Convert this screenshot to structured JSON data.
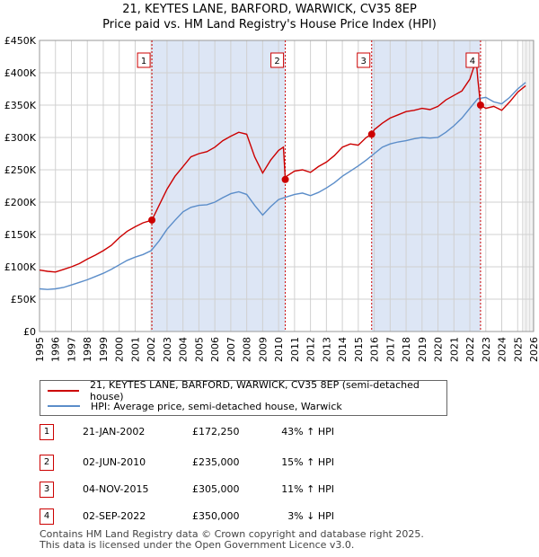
{
  "title_line1": "21, KEYTES LANE, BARFORD, WARWICK, CV35 8EP",
  "title_line2": "Price paid vs. HM Land Registry's House Price Index (HPI)",
  "colors": {
    "property": "#cc0000",
    "hpi": "#5b8dc9",
    "shade": "#dde6f5",
    "grid": "#d0d0d0"
  },
  "chart_data": {
    "type": "line",
    "ylabel_ticks": [
      "£0",
      "£50K",
      "£100K",
      "£150K",
      "£200K",
      "£250K",
      "£300K",
      "£350K",
      "£400K",
      "£450K"
    ],
    "ylim": [
      0,
      450000
    ],
    "xlim": [
      1995,
      2026
    ],
    "x_ticks": [
      "1995",
      "1996",
      "1997",
      "1998",
      "1999",
      "2000",
      "2001",
      "2002",
      "2003",
      "2004",
      "2005",
      "2006",
      "2007",
      "2008",
      "2009",
      "2010",
      "2011",
      "2012",
      "2013",
      "2014",
      "2015",
      "2016",
      "2017",
      "2018",
      "2019",
      "2020",
      "2021",
      "2022",
      "2023",
      "2024",
      "2025",
      "2026"
    ],
    "series": [
      {
        "name": "21, KEYTES LANE, BARFORD, WARWICK, CV35 8EP (semi-detached house)",
        "color": "#cc0000",
        "x": [
          1995.0,
          1995.5,
          1996.0,
          1996.5,
          1997.0,
          1997.5,
          1998.0,
          1998.5,
          1999.0,
          1999.5,
          2000.0,
          2000.5,
          2001.0,
          2001.5,
          2002.05,
          2002.5,
          2003.0,
          2003.5,
          2004.0,
          2004.5,
          2005.0,
          2005.5,
          2006.0,
          2006.5,
          2007.0,
          2007.5,
          2008.0,
          2008.5,
          2009.0,
          2009.5,
          2010.0,
          2010.3,
          2010.42,
          2010.5,
          2011.0,
          2011.5,
          2012.0,
          2012.5,
          2013.0,
          2013.5,
          2014.0,
          2014.5,
          2015.0,
          2015.5,
          2015.84,
          2016.0,
          2016.5,
          2017.0,
          2017.5,
          2018.0,
          2018.5,
          2019.0,
          2019.5,
          2020.0,
          2020.5,
          2021.0,
          2021.5,
          2022.0,
          2022.4,
          2022.5,
          2022.67,
          2023.0,
          2023.5,
          2024.0,
          2024.5,
          2025.0,
          2025.5
        ],
        "y": [
          95000,
          93000,
          92000,
          96000,
          100000,
          105000,
          112000,
          118000,
          125000,
          133000,
          145000,
          155000,
          162000,
          168000,
          172250,
          195000,
          220000,
          240000,
          255000,
          270000,
          275000,
          278000,
          285000,
          295000,
          302000,
          308000,
          305000,
          270000,
          245000,
          265000,
          280000,
          285000,
          235000,
          240000,
          248000,
          250000,
          246000,
          255000,
          262000,
          272000,
          285000,
          290000,
          288000,
          300000,
          305000,
          312000,
          322000,
          330000,
          335000,
          340000,
          342000,
          345000,
          343000,
          348000,
          358000,
          365000,
          372000,
          390000,
          420000,
          390000,
          350000,
          345000,
          348000,
          342000,
          355000,
          370000,
          380000
        ]
      },
      {
        "name": "HPI: Average price, semi-detached house, Warwick",
        "color": "#5b8dc9",
        "x": [
          1995.0,
          1995.5,
          1996.0,
          1996.5,
          1997.0,
          1997.5,
          1998.0,
          1998.5,
          1999.0,
          1999.5,
          2000.0,
          2000.5,
          2001.0,
          2001.5,
          2002.0,
          2002.5,
          2003.0,
          2003.5,
          2004.0,
          2004.5,
          2005.0,
          2005.5,
          2006.0,
          2006.5,
          2007.0,
          2007.5,
          2008.0,
          2008.5,
          2009.0,
          2009.5,
          2010.0,
          2010.5,
          2011.0,
          2011.5,
          2012.0,
          2012.5,
          2013.0,
          2013.5,
          2014.0,
          2014.5,
          2015.0,
          2015.5,
          2016.0,
          2016.5,
          2017.0,
          2017.5,
          2018.0,
          2018.5,
          2019.0,
          2019.5,
          2020.0,
          2020.5,
          2021.0,
          2021.5,
          2022.0,
          2022.5,
          2023.0,
          2023.5,
          2024.0,
          2024.5,
          2025.0,
          2025.5
        ],
        "y": [
          66000,
          65000,
          66000,
          68000,
          72000,
          76000,
          80000,
          85000,
          90000,
          96000,
          103000,
          110000,
          115000,
          119000,
          125000,
          140000,
          158000,
          172000,
          185000,
          192000,
          195000,
          196000,
          200000,
          207000,
          213000,
          216000,
          212000,
          195000,
          180000,
          193000,
          204000,
          208000,
          212000,
          214000,
          210000,
          215000,
          222000,
          230000,
          240000,
          248000,
          256000,
          265000,
          275000,
          285000,
          290000,
          293000,
          295000,
          298000,
          300000,
          299000,
          300000,
          308000,
          318000,
          330000,
          345000,
          360000,
          362000,
          355000,
          352000,
          362000,
          375000,
          385000
        ]
      }
    ],
    "sales": [
      {
        "num": "1",
        "x": 2002.05,
        "y": 172250
      },
      {
        "num": "2",
        "x": 2010.42,
        "y": 235000
      },
      {
        "num": "3",
        "x": 2015.84,
        "y": 305000
      },
      {
        "num": "4",
        "x": 2022.67,
        "y": 350000
      }
    ],
    "shaded_ranges": [
      [
        2002.05,
        2010.42
      ],
      [
        2015.84,
        2022.67
      ]
    ],
    "future_from": 2025.3
  },
  "legend": {
    "property": "21, KEYTES LANE, BARFORD, WARWICK, CV35 8EP (semi-detached house)",
    "hpi": "HPI: Average price, semi-detached house, Warwick"
  },
  "transactions": [
    {
      "num": "1",
      "date": "21-JAN-2002",
      "price": "£172,250",
      "hpi": "43% ↑ HPI"
    },
    {
      "num": "2",
      "date": "02-JUN-2010",
      "price": "£235,000",
      "hpi": "15% ↑ HPI"
    },
    {
      "num": "3",
      "date": "04-NOV-2015",
      "price": "£305,000",
      "hpi": "11% ↑ HPI"
    },
    {
      "num": "4",
      "date": "02-SEP-2022",
      "price": "£350,000",
      "hpi": "3% ↓ HPI"
    }
  ],
  "footer_line1": "Contains HM Land Registry data © Crown copyright and database right 2025.",
  "footer_line2": "This data is licensed under the Open Government Licence v3.0."
}
